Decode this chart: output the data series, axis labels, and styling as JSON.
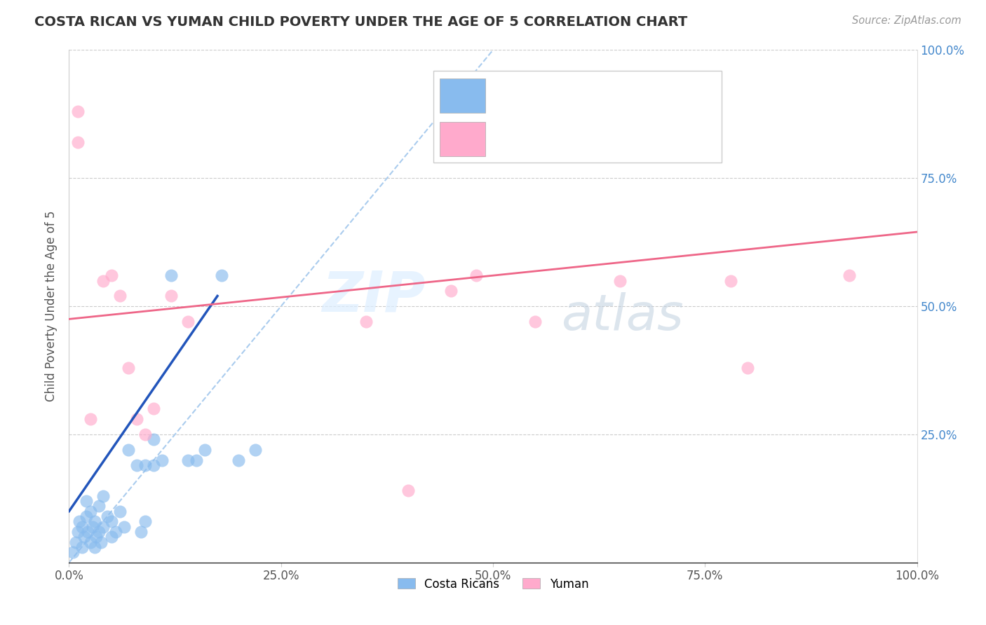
{
  "title": "COSTA RICAN VS YUMAN CHILD POVERTY UNDER THE AGE OF 5 CORRELATION CHART",
  "source": "Source: ZipAtlas.com",
  "ylabel": "Child Poverty Under the Age of 5",
  "xlim": [
    0,
    1
  ],
  "ylim": [
    0,
    1
  ],
  "xticks": [
    0,
    0.25,
    0.5,
    0.75,
    1.0
  ],
  "yticks": [
    0.25,
    0.5,
    0.75,
    1.0
  ],
  "xticklabels": [
    "0.0%",
    "25.0%",
    "50.0%",
    "75.0%",
    "100.0%"
  ],
  "yticklabels_right": [
    "25.0%",
    "50.0%",
    "75.0%",
    "100.0%"
  ],
  "blue_color": "#88BBEE",
  "pink_color": "#FFAACC",
  "blue_line_color": "#2255BB",
  "pink_line_color": "#EE6688",
  "blue_label": "Costa Ricans",
  "pink_label": "Yuman",
  "watermark_zip": "ZIP",
  "watermark_atlas": "atlas",
  "blue_scatter_x": [
    0.005,
    0.008,
    0.01,
    0.012,
    0.015,
    0.015,
    0.018,
    0.02,
    0.02,
    0.022,
    0.025,
    0.025,
    0.028,
    0.03,
    0.03,
    0.032,
    0.035,
    0.035,
    0.038,
    0.04,
    0.04,
    0.045,
    0.05,
    0.05,
    0.055,
    0.06,
    0.065,
    0.07,
    0.08,
    0.085,
    0.09,
    0.09,
    0.1,
    0.1,
    0.11,
    0.12,
    0.14,
    0.15,
    0.16,
    0.18,
    0.2,
    0.22
  ],
  "blue_scatter_y": [
    0.02,
    0.04,
    0.06,
    0.08,
    0.03,
    0.07,
    0.05,
    0.09,
    0.12,
    0.06,
    0.04,
    0.1,
    0.07,
    0.03,
    0.08,
    0.05,
    0.06,
    0.11,
    0.04,
    0.07,
    0.13,
    0.09,
    0.05,
    0.08,
    0.06,
    0.1,
    0.07,
    0.22,
    0.19,
    0.06,
    0.08,
    0.19,
    0.19,
    0.24,
    0.2,
    0.56,
    0.2,
    0.2,
    0.22,
    0.56,
    0.2,
    0.22
  ],
  "pink_scatter_x": [
    0.01,
    0.01,
    0.025,
    0.04,
    0.05,
    0.06,
    0.07,
    0.08,
    0.09,
    0.1,
    0.12,
    0.14,
    0.35,
    0.4,
    0.45,
    0.48,
    0.55,
    0.65,
    0.78,
    0.8,
    0.92
  ],
  "pink_scatter_y": [
    0.88,
    0.82,
    0.28,
    0.55,
    0.56,
    0.52,
    0.38,
    0.28,
    0.25,
    0.3,
    0.52,
    0.47,
    0.47,
    0.14,
    0.53,
    0.56,
    0.47,
    0.55,
    0.55,
    0.38,
    0.56
  ],
  "blue_trend_x0": 0.0,
  "blue_trend_y0": 0.1,
  "blue_trend_x1": 0.175,
  "blue_trend_y1": 0.52,
  "pink_trend_x0": 0.0,
  "pink_trend_y0": 0.475,
  "pink_trend_x1": 1.0,
  "pink_trend_y1": 0.645
}
